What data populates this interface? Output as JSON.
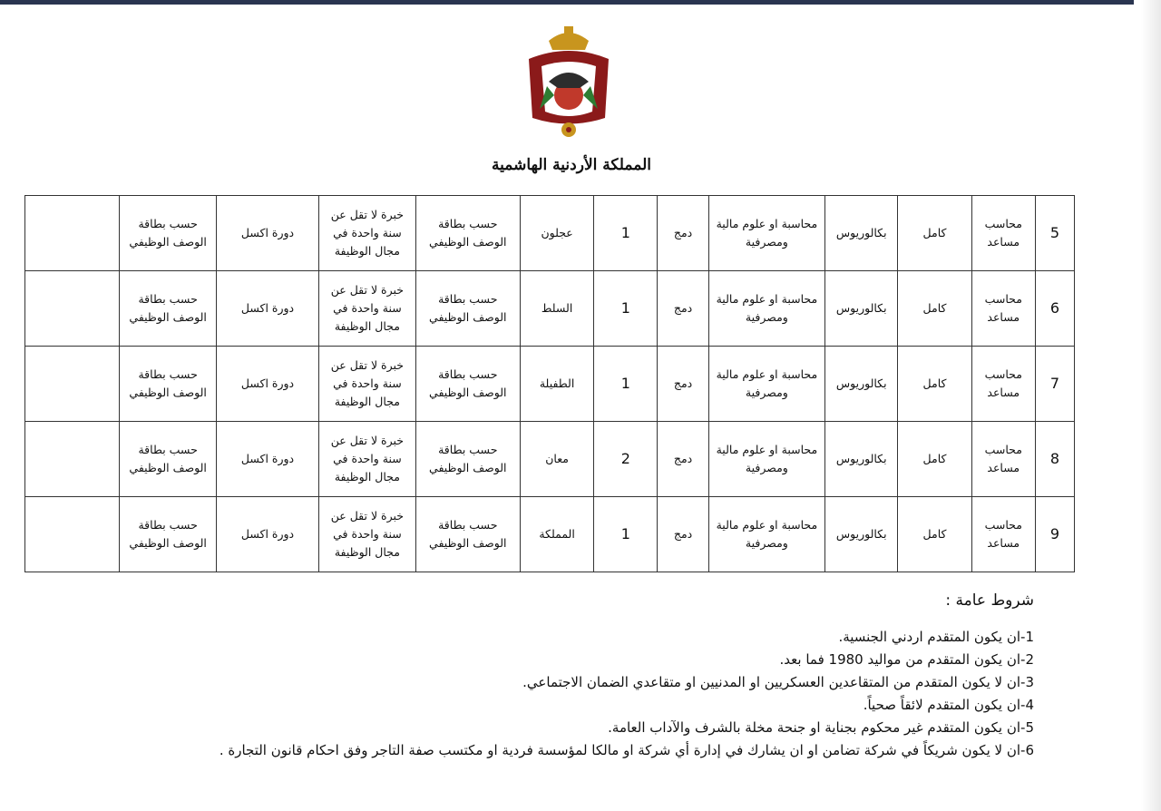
{
  "header": {
    "title": "المملكة الأردنية الهاشمية"
  },
  "table": {
    "rows": [
      [
        "5",
        "محاسب مساعد",
        "كامل",
        "بكالوريوس",
        "محاسبة او علوم مالية ومصرفية",
        "دمج",
        "1",
        "عجلون",
        "حسب بطاقة الوصف الوظيفي",
        "خبرة لا تقل عن سنة واحدة في مجال الوظيفة",
        "دورة اكسل",
        "حسب بطاقة الوصف الوظيفي"
      ],
      [
        "6",
        "محاسب مساعد",
        "كامل",
        "بكالوريوس",
        "محاسبة او علوم مالية ومصرفية",
        "دمج",
        "1",
        "السلط",
        "حسب بطاقة الوصف الوظيفي",
        "خبرة لا تقل عن سنة واحدة في مجال الوظيفة",
        "دورة اكسل",
        "حسب بطاقة الوصف الوظيفي"
      ],
      [
        "7",
        "محاسب مساعد",
        "كامل",
        "بكالوريوس",
        "محاسبة او علوم مالية ومصرفية",
        "دمج",
        "1",
        "الطفيلة",
        "حسب بطاقة الوصف الوظيفي",
        "خبرة لا تقل عن سنة واحدة في مجال الوظيفة",
        "دورة اكسل",
        "حسب بطاقة الوصف الوظيفي"
      ],
      [
        "8",
        "محاسب مساعد",
        "كامل",
        "بكالوريوس",
        "محاسبة او علوم مالية ومصرفية",
        "دمج",
        "2",
        "معان",
        "حسب بطاقة الوصف الوظيفي",
        "خبرة لا تقل عن سنة واحدة في مجال الوظيفة",
        "دورة اكسل",
        "حسب بطاقة الوصف الوظيفي"
      ],
      [
        "9",
        "محاسب مساعد",
        "كامل",
        "بكالوريوس",
        "محاسبة او علوم مالية ومصرفية",
        "دمج",
        "1",
        "المملكة",
        "حسب بطاقة الوصف الوظيفي",
        "خبرة لا تقل عن سنة واحدة في مجال الوظيفة",
        "دورة اكسل",
        "حسب بطاقة الوصف الوظيفي"
      ]
    ]
  },
  "conditions": {
    "title": "شروط عامة :",
    "items": [
      "1-ان يكون المتقدم اردني الجنسية.",
      "2-ان يكون المتقدم من مواليد 1980 فما بعد.",
      "3-ان لا يكون المتقدم من المتقاعدين العسكريين او المدنيين او متقاعدي الضمان الاجتماعي.",
      "4-ان يكون المتقدم لائقاً صحياً.",
      "5-ان يكون المتقدم غير محكوم بجناية او جنحة مخلة بالشرف والآداب العامة.",
      "6-ان لا يكون شريكاً في شركة تضامن او ان يشارك في إدارة أي شركة او مالكا لمؤسسة فردية او مكتسب صفة التاجر وفق احكام قانون التجارة ."
    ]
  }
}
